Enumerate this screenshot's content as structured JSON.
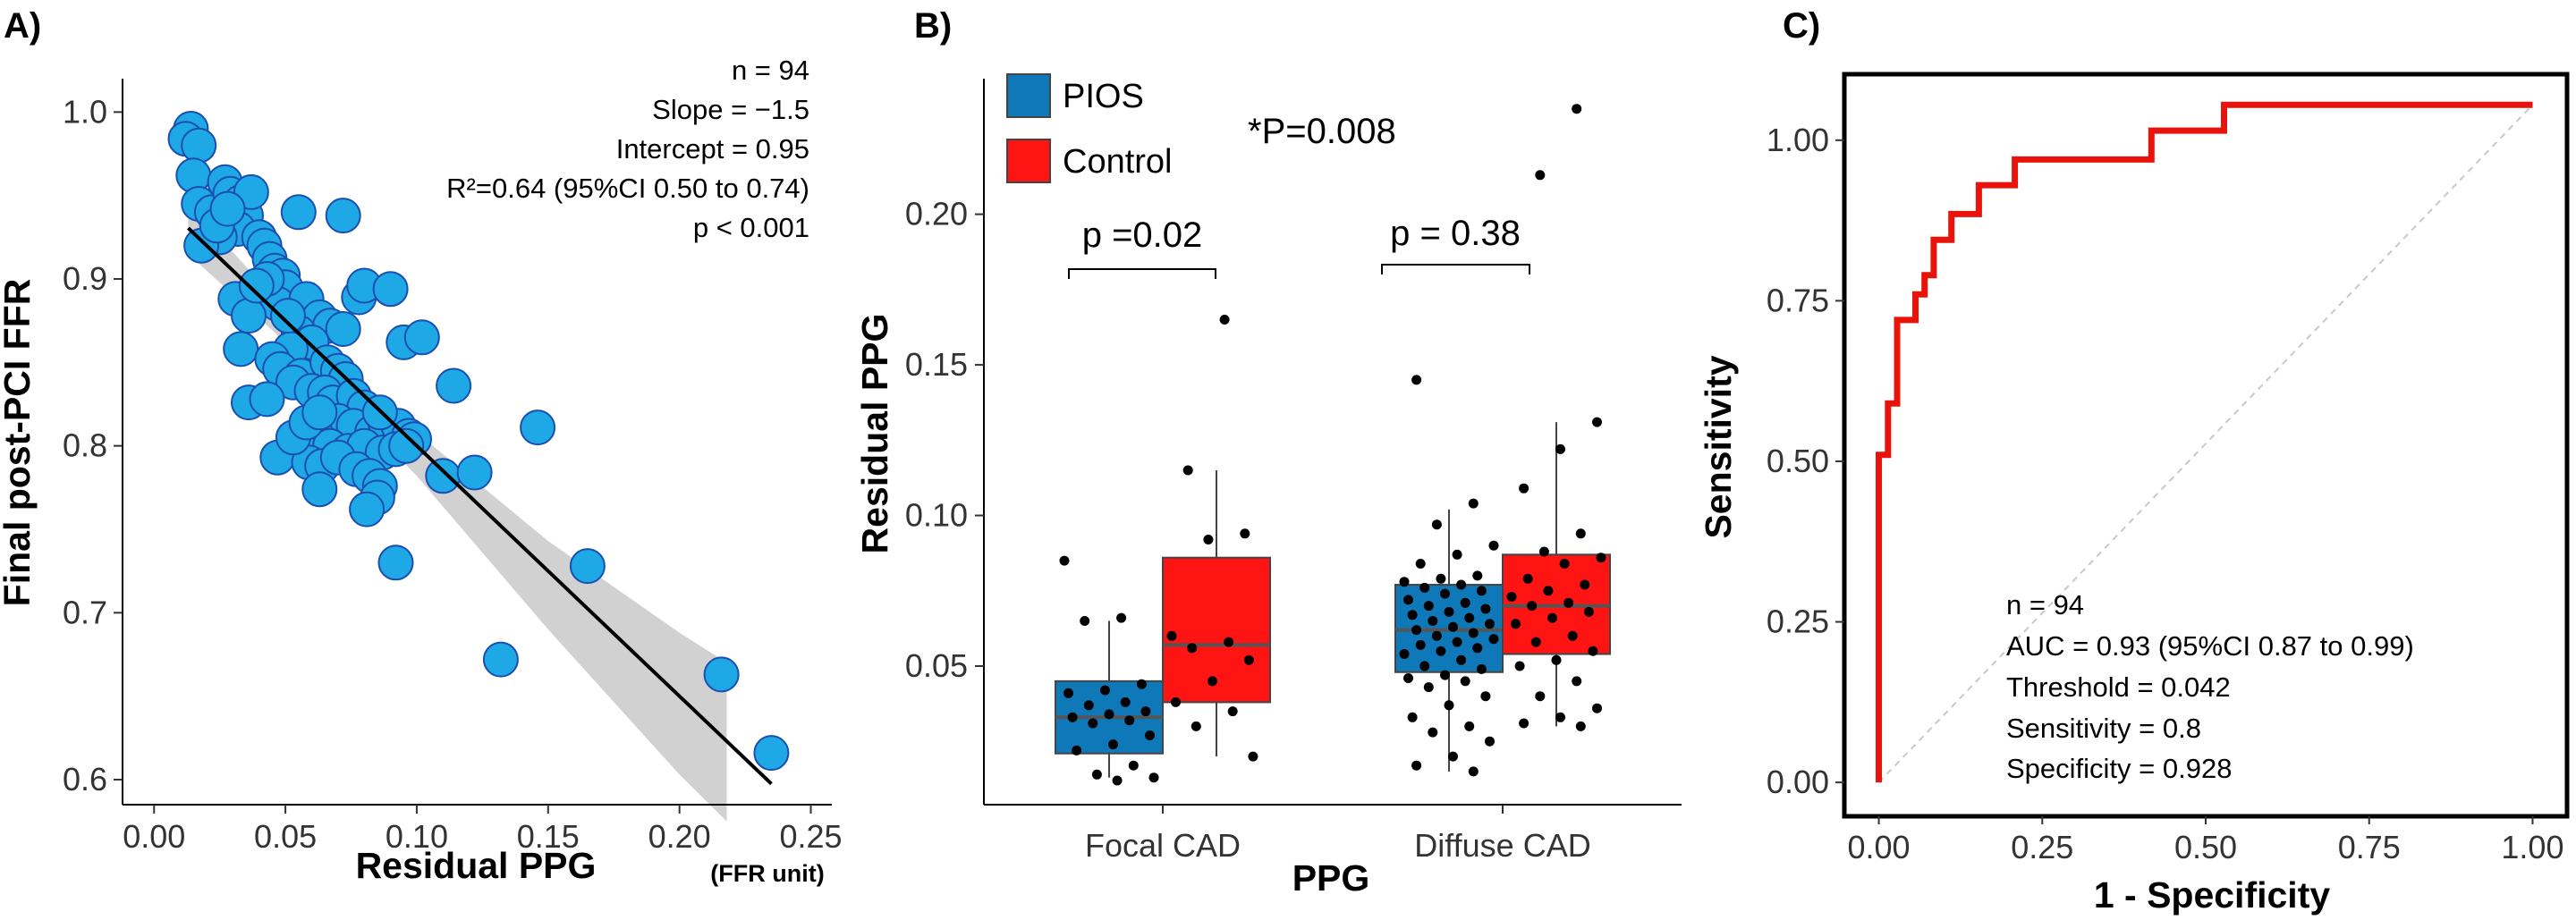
{
  "colors": {
    "scatter_fill": "#1fa8e6",
    "scatter_stroke": "#1a4fb0",
    "pios": "#0f78b8",
    "control": "#ff1414",
    "roc": "#e8140c",
    "ci_band": "#c9c9c9",
    "diagonal": "#c8c8c8"
  },
  "chart_data": [
    {
      "panel_label": "A)",
      "type": "scatter",
      "ylabel": "Final post-PCI FFR",
      "xlabel": "Residual PPG",
      "xunit": "(FFR unit)",
      "xlim": [
        -0.012,
        0.258
      ],
      "ylim": [
        0.585,
        1.02
      ],
      "x_ticks": [
        {
          "value": 0.0,
          "label": "0.00"
        },
        {
          "value": 0.05,
          "label": "0.05"
        },
        {
          "value": 0.1,
          "label": "0.10"
        },
        {
          "value": 0.15,
          "label": "0.15"
        },
        {
          "value": 0.2,
          "label": "0.20"
        },
        {
          "value": 0.25,
          "label": "0.25"
        }
      ],
      "y_ticks": [
        {
          "value": 0.6,
          "label": "0.6"
        },
        {
          "value": 0.7,
          "label": "0.7"
        },
        {
          "value": 0.8,
          "label": "0.8"
        },
        {
          "value": 0.9,
          "label": "0.9"
        },
        {
          "value": 1.0,
          "label": "1.0"
        }
      ],
      "annotations": [
        "n = 94",
        "Slope = −1.5",
        "Intercept = 0.95",
        "R²=0.64 (95%CI 0.50 to 0.74)",
        "p < 0.001"
      ],
      "regression": {
        "x_start": 0.013,
        "x_end": 0.235,
        "slope": -1.5,
        "intercept": 0.95
      },
      "ci_band": [
        {
          "x": 0.013,
          "lo": 0.915,
          "hi": 0.945
        },
        {
          "x": 0.05,
          "lo": 0.862,
          "hi": 0.882
        },
        {
          "x": 0.1,
          "lo": 0.782,
          "hi": 0.808
        },
        {
          "x": 0.15,
          "lo": 0.69,
          "hi": 0.743
        },
        {
          "x": 0.2,
          "lo": 0.603,
          "hi": 0.688
        },
        {
          "x": 0.218,
          "lo": 0.575,
          "hi": 0.67
        }
      ],
      "points": [
        {
          "x": 0.014,
          "y": 0.99
        },
        {
          "x": 0.012,
          "y": 0.984
        },
        {
          "x": 0.017,
          "y": 0.98
        },
        {
          "x": 0.015,
          "y": 0.962
        },
        {
          "x": 0.017,
          "y": 0.945
        },
        {
          "x": 0.022,
          "y": 0.94
        },
        {
          "x": 0.027,
          "y": 0.958
        },
        {
          "x": 0.029,
          "y": 0.951
        },
        {
          "x": 0.033,
          "y": 0.946
        },
        {
          "x": 0.035,
          "y": 0.938
        },
        {
          "x": 0.037,
          "y": 0.952
        },
        {
          "x": 0.032,
          "y": 0.93
        },
        {
          "x": 0.025,
          "y": 0.925
        },
        {
          "x": 0.018,
          "y": 0.92
        },
        {
          "x": 0.04,
          "y": 0.925
        },
        {
          "x": 0.042,
          "y": 0.92
        },
        {
          "x": 0.044,
          "y": 0.912
        },
        {
          "x": 0.046,
          "y": 0.905
        },
        {
          "x": 0.049,
          "y": 0.902
        },
        {
          "x": 0.05,
          "y": 0.895
        },
        {
          "x": 0.055,
          "y": 0.94
        },
        {
          "x": 0.072,
          "y": 0.938
        },
        {
          "x": 0.047,
          "y": 0.885
        },
        {
          "x": 0.031,
          "y": 0.888
        },
        {
          "x": 0.036,
          "y": 0.878
        },
        {
          "x": 0.058,
          "y": 0.888
        },
        {
          "x": 0.063,
          "y": 0.877
        },
        {
          "x": 0.067,
          "y": 0.872
        },
        {
          "x": 0.072,
          "y": 0.87
        },
        {
          "x": 0.078,
          "y": 0.889
        },
        {
          "x": 0.08,
          "y": 0.896
        },
        {
          "x": 0.09,
          "y": 0.894
        },
        {
          "x": 0.055,
          "y": 0.868
        },
        {
          "x": 0.06,
          "y": 0.862
        },
        {
          "x": 0.052,
          "y": 0.858
        },
        {
          "x": 0.033,
          "y": 0.858
        },
        {
          "x": 0.045,
          "y": 0.852
        },
        {
          "x": 0.048,
          "y": 0.846
        },
        {
          "x": 0.056,
          "y": 0.842
        },
        {
          "x": 0.066,
          "y": 0.85
        },
        {
          "x": 0.07,
          "y": 0.845
        },
        {
          "x": 0.073,
          "y": 0.84
        },
        {
          "x": 0.095,
          "y": 0.862
        },
        {
          "x": 0.102,
          "y": 0.865
        },
        {
          "x": 0.053,
          "y": 0.838
        },
        {
          "x": 0.06,
          "y": 0.833
        },
        {
          "x": 0.065,
          "y": 0.832
        },
        {
          "x": 0.068,
          "y": 0.826
        },
        {
          "x": 0.076,
          "y": 0.83
        },
        {
          "x": 0.08,
          "y": 0.823
        },
        {
          "x": 0.036,
          "y": 0.826
        },
        {
          "x": 0.043,
          "y": 0.828
        },
        {
          "x": 0.114,
          "y": 0.836
        },
        {
          "x": 0.07,
          "y": 0.815
        },
        {
          "x": 0.076,
          "y": 0.812
        },
        {
          "x": 0.083,
          "y": 0.808
        },
        {
          "x": 0.088,
          "y": 0.814
        },
        {
          "x": 0.093,
          "y": 0.812
        },
        {
          "x": 0.097,
          "y": 0.806
        },
        {
          "x": 0.099,
          "y": 0.804
        },
        {
          "x": 0.062,
          "y": 0.806
        },
        {
          "x": 0.067,
          "y": 0.8
        },
        {
          "x": 0.074,
          "y": 0.797
        },
        {
          "x": 0.08,
          "y": 0.8
        },
        {
          "x": 0.087,
          "y": 0.796
        },
        {
          "x": 0.092,
          "y": 0.798
        },
        {
          "x": 0.096,
          "y": 0.8
        },
        {
          "x": 0.146,
          "y": 0.811
        },
        {
          "x": 0.047,
          "y": 0.793
        },
        {
          "x": 0.059,
          "y": 0.79
        },
        {
          "x": 0.064,
          "y": 0.788
        },
        {
          "x": 0.07,
          "y": 0.793
        },
        {
          "x": 0.077,
          "y": 0.786
        },
        {
          "x": 0.082,
          "y": 0.782
        },
        {
          "x": 0.086,
          "y": 0.776
        },
        {
          "x": 0.11,
          "y": 0.782
        },
        {
          "x": 0.122,
          "y": 0.784
        },
        {
          "x": 0.063,
          "y": 0.774
        },
        {
          "x": 0.085,
          "y": 0.769
        },
        {
          "x": 0.081,
          "y": 0.762
        },
        {
          "x": 0.053,
          "y": 0.805
        },
        {
          "x": 0.058,
          "y": 0.814
        },
        {
          "x": 0.063,
          "y": 0.82
        },
        {
          "x": 0.092,
          "y": 0.73
        },
        {
          "x": 0.165,
          "y": 0.728
        },
        {
          "x": 0.132,
          "y": 0.672
        },
        {
          "x": 0.216,
          "y": 0.663
        },
        {
          "x": 0.235,
          "y": 0.616
        },
        {
          "x": 0.043,
          "y": 0.9
        },
        {
          "x": 0.039,
          "y": 0.896
        },
        {
          "x": 0.024,
          "y": 0.932
        },
        {
          "x": 0.028,
          "y": 0.942
        },
        {
          "x": 0.051,
          "y": 0.878
        },
        {
          "x": 0.086,
          "y": 0.82
        }
      ]
    },
    {
      "panel_label": "B)",
      "type": "box",
      "ylabel": "Residual PPG",
      "xlabel": "PPG",
      "ylim": [
        0.004,
        0.245
      ],
      "categories": [
        "Focal CAD",
        "Diffuse CAD"
      ],
      "y_ticks": [
        {
          "value": 0.05,
          "label": "0.05"
        },
        {
          "value": 0.1,
          "label": "0.10"
        },
        {
          "value": 0.15,
          "label": "0.15"
        },
        {
          "value": 0.2,
          "label": "0.20"
        }
      ],
      "legend": [
        {
          "name": "PIOS",
          "color": "#0f78b8"
        },
        {
          "name": "Control",
          "color": "#ff1414"
        }
      ],
      "overall_p": "*P=0.008",
      "comparisons": [
        {
          "category": "Focal CAD",
          "label": "p =0.02"
        },
        {
          "category": "Diffuse CAD",
          "label": "p = 0.38"
        }
      ],
      "series": [
        {
          "name": "PIOS",
          "category": "Focal CAD",
          "box": {
            "min": 0.013,
            "q1": 0.021,
            "median": 0.033,
            "q3": 0.045,
            "max": 0.065
          },
          "points": [
            0.085,
            0.066,
            0.065,
            0.044,
            0.042,
            0.041,
            0.038,
            0.037,
            0.035,
            0.034,
            0.033,
            0.032,
            0.031,
            0.027,
            0.024,
            0.022,
            0.017,
            0.014,
            0.013,
            0.012
          ]
        },
        {
          "name": "Control",
          "category": "Focal CAD",
          "box": {
            "min": 0.02,
            "q1": 0.038,
            "median": 0.057,
            "q3": 0.086,
            "max": 0.115
          },
          "points": [
            0.165,
            0.115,
            0.094,
            0.092,
            0.06,
            0.058,
            0.056,
            0.052,
            0.045,
            0.038,
            0.035,
            0.03,
            0.02
          ]
        },
        {
          "name": "PIOS",
          "category": "Diffuse CAD",
          "box": {
            "min": 0.015,
            "q1": 0.048,
            "median": 0.062,
            "q3": 0.077,
            "max": 0.102
          },
          "points": [
            0.145,
            0.104,
            0.097,
            0.09,
            0.087,
            0.084,
            0.08,
            0.079,
            0.078,
            0.077,
            0.076,
            0.075,
            0.074,
            0.072,
            0.071,
            0.07,
            0.069,
            0.068,
            0.067,
            0.066,
            0.065,
            0.064,
            0.063,
            0.062,
            0.061,
            0.06,
            0.059,
            0.058,
            0.057,
            0.056,
            0.055,
            0.054,
            0.052,
            0.05,
            0.049,
            0.047,
            0.046,
            0.045,
            0.043,
            0.04,
            0.037,
            0.033,
            0.03,
            0.028,
            0.025,
            0.02,
            0.017,
            0.015
          ]
        },
        {
          "name": "Control",
          "category": "Diffuse CAD",
          "box": {
            "min": 0.03,
            "q1": 0.054,
            "median": 0.07,
            "q3": 0.087,
            "max": 0.131
          },
          "points": [
            0.235,
            0.213,
            0.131,
            0.122,
            0.109,
            0.094,
            0.088,
            0.086,
            0.084,
            0.079,
            0.077,
            0.075,
            0.073,
            0.071,
            0.07,
            0.068,
            0.066,
            0.064,
            0.06,
            0.058,
            0.055,
            0.052,
            0.05,
            0.045,
            0.04,
            0.036,
            0.033,
            0.031,
            0.03
          ]
        }
      ]
    },
    {
      "panel_label": "C)",
      "type": "line",
      "subtype": "roc",
      "xlabel": "1 - Specificity",
      "ylabel": "Sensitivity",
      "xlim": [
        -0.05,
        1.05
      ],
      "ylim": [
        -0.05,
        1.1
      ],
      "x_ticks": [
        {
          "value": 0.0,
          "label": "0.00"
        },
        {
          "value": 0.25,
          "label": "0.25"
        },
        {
          "value": 0.5,
          "label": "0.50"
        },
        {
          "value": 0.75,
          "label": "0.75"
        },
        {
          "value": 1.0,
          "label": "1.00"
        }
      ],
      "y_ticks": [
        {
          "value": 0.0,
          "label": "0.00"
        },
        {
          "value": 0.25,
          "label": "0.25"
        },
        {
          "value": 0.5,
          "label": "0.50"
        },
        {
          "value": 0.75,
          "label": "0.75"
        },
        {
          "value": 1.0,
          "label": "1.00"
        }
      ],
      "annotations": [
        "n = 94",
        "AUC = 0.93 (95%CI 0.87 to 0.99)",
        "Threshold = 0.042",
        "Sensitivity = 0.8",
        "Specificity = 0.928"
      ],
      "x": [
        0.0,
        0.0,
        0.014,
        0.014,
        0.028,
        0.028,
        0.056,
        0.056,
        0.07,
        0.07,
        0.084,
        0.084,
        0.111,
        0.111,
        0.153,
        0.153,
        0.208,
        0.208,
        0.417,
        0.417,
        0.528,
        0.528,
        1.0
      ],
      "y": [
        0.0,
        0.51,
        0.51,
        0.59,
        0.59,
        0.72,
        0.72,
        0.76,
        0.76,
        0.79,
        0.79,
        0.845,
        0.845,
        0.885,
        0.885,
        0.93,
        0.93,
        0.97,
        0.97,
        1.015,
        1.015,
        1.055,
        1.055
      ]
    }
  ]
}
